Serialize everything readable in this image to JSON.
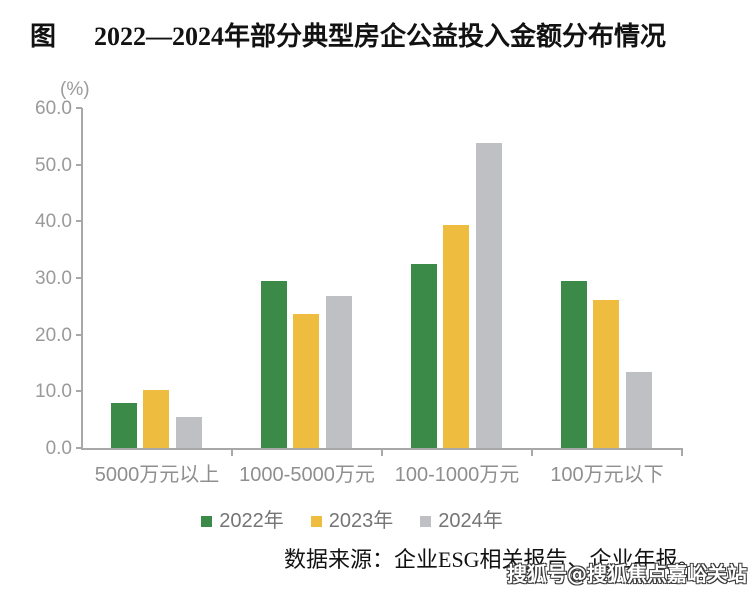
{
  "header": {
    "figure_prefix": "图",
    "title": "2022—2024年部分典型房企公益投入金额分布情况"
  },
  "chart_data": {
    "type": "bar",
    "title": "图 2022—2024年部分典型房企公益投入金额分布情况",
    "unit_label": "(%)",
    "categories": [
      "5000万元以上",
      "1000-5000万元",
      "100-1000万元",
      "100万元以下"
    ],
    "series": [
      {
        "name": "2022年",
        "color": "#3c8a48",
        "values": [
          8.0,
          29.5,
          32.4,
          29.5
        ]
      },
      {
        "name": "2023年",
        "color": "#eebc3e",
        "values": [
          10.3,
          23.7,
          39.4,
          26.2
        ]
      },
      {
        "name": "2024年",
        "color": "#bfc0c4",
        "values": [
          5.4,
          26.9,
          53.9,
          13.4
        ]
      }
    ],
    "y_ticks": [
      0,
      10,
      20,
      30,
      40,
      50,
      60
    ],
    "y_tick_format": "one-decimal",
    "ylim": [
      0,
      60
    ],
    "grid": false,
    "legend_position": "bottom"
  },
  "colors": {
    "axis": "#a8a8a8",
    "tick_label": "#9a9a9a",
    "category_label": "#8f8f8f",
    "legend_label": "#757575",
    "series_2022": "#3c8a48",
    "series_2023": "#eebc3e",
    "series_2024": "#bfc0c4"
  },
  "footer": {
    "source_note": "数据来源：企业ESG相关报告、企业年报。"
  },
  "watermark": {
    "text": "搜狐号@搜狐焦点嘉峪关站"
  }
}
